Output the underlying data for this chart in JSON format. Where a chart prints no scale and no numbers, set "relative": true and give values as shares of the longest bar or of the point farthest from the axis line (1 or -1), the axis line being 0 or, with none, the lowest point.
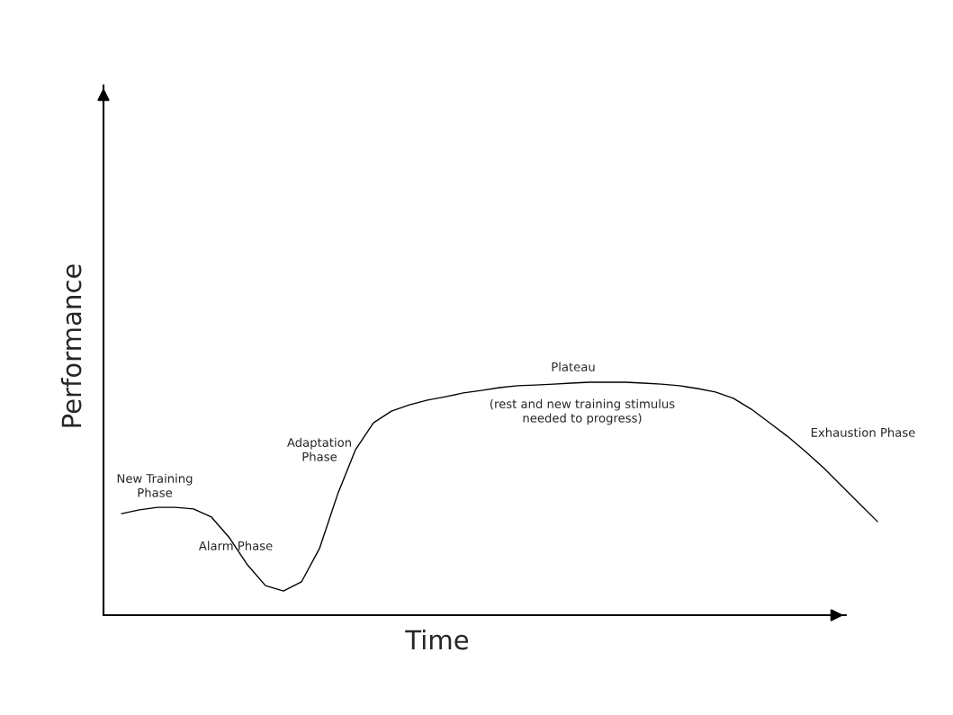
{
  "chart_data": {
    "type": "line",
    "relative": true,
    "xlabel": "Time",
    "ylabel": "Performance",
    "categories": [
      null,
      null,
      null,
      null,
      null,
      null,
      null,
      null,
      null,
      null,
      null,
      null,
      null,
      null,
      null,
      null,
      null,
      null,
      null,
      null,
      null,
      null,
      null,
      null,
      null,
      null,
      null,
      null,
      null,
      null,
      null,
      null,
      null,
      null,
      null,
      null,
      null,
      null,
      null,
      null,
      null,
      null,
      null
    ],
    "series": [
      {
        "color": "#000000",
        "values": [
          0.436,
          0.452,
          0.463,
          0.463,
          0.456,
          0.421,
          0.332,
          0.216,
          0.127,
          0.104,
          0.143,
          0.286,
          0.517,
          0.71,
          0.826,
          0.876,
          0.903,
          0.923,
          0.938,
          0.954,
          0.965,
          0.977,
          0.985,
          0.988,
          0.992,
          0.996,
          1,
          1,
          1,
          0.996,
          0.992,
          0.985,
          0.973,
          0.958,
          0.931,
          0.884,
          0.826,
          0.768,
          0.703,
          0.633,
          0.556,
          0.479,
          0.402
        ]
      }
    ],
    "annotations": [
      "New Training\nPhase",
      "Alarm Phase",
      "Adaptation\nPhase",
      "Plateau",
      "(rest and new training stimulus\nneeded to progress)",
      "Exhaustion Phase"
    ],
    "legend": false
  }
}
